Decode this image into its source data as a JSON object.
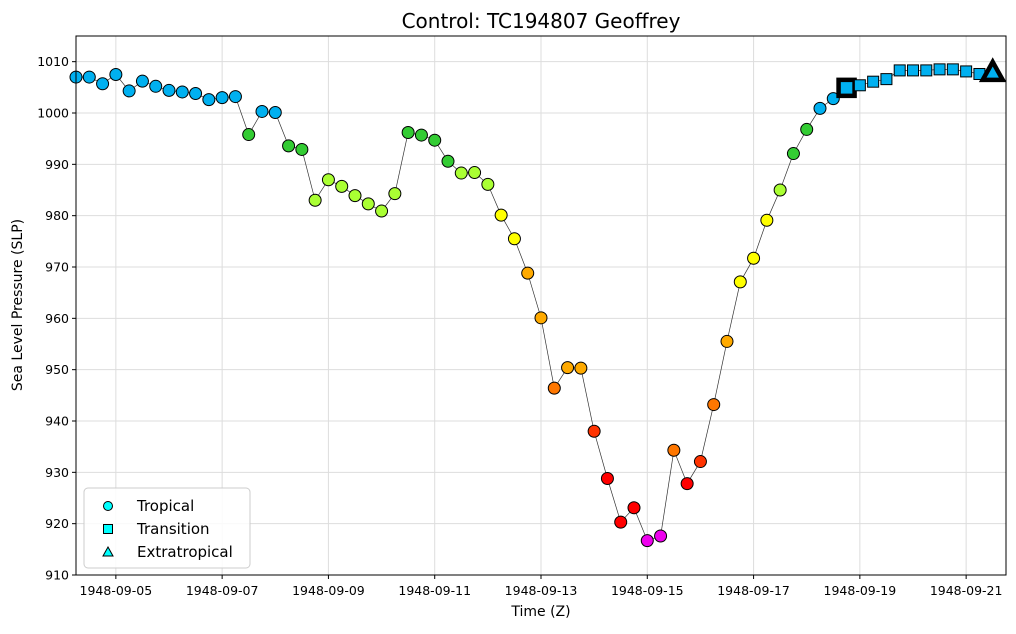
{
  "chart_data": {
    "type": "scatter",
    "title": "Control: TC194807 Geoffrey",
    "xlabel": "Time (Z)",
    "ylabel": "Sea Level Pressure (SLP)",
    "ylim": [
      910,
      1015
    ],
    "xlim": [
      "1948-09-04 06:00",
      "1948-09-21 18:00"
    ],
    "yticks": [
      910,
      920,
      930,
      940,
      950,
      960,
      970,
      980,
      990,
      1000,
      1010
    ],
    "xticks": [
      "1948-09-05",
      "1948-09-07",
      "1948-09-09",
      "1948-09-11",
      "1948-09-13",
      "1948-09-15",
      "1948-09-17",
      "1948-09-19",
      "1948-09-21"
    ],
    "grid": true,
    "legend": {
      "placement": "lower-left",
      "entries": [
        {
          "label": "Tropical",
          "marker": "circle",
          "color": "#00ffff"
        },
        {
          "label": "Transition",
          "marker": "square",
          "color": "#00ffff"
        },
        {
          "label": "Extratropical",
          "marker": "triangle",
          "color": "#00ffff"
        }
      ]
    },
    "colors": {
      "line": "#333333",
      "grid": "#dddddd",
      "TD": "#00b0f0",
      "TS": "#33cc33",
      "TS2": "#aaff33",
      "C1": "#ffff00",
      "C2": "#ffaa00",
      "C3": "#ff7700",
      "C4": "#ff3300",
      "C5": "#ff0000",
      "C6": "#ee00ee"
    },
    "series": [
      {
        "marker": "circle",
        "points": [
          {
            "x": "1948-09-04 06:00",
            "y": 1007.0,
            "cat": "TD"
          },
          {
            "x": "1948-09-04 12:00",
            "y": 1007.0,
            "cat": "TD"
          },
          {
            "x": "1948-09-04 18:00",
            "y": 1005.7,
            "cat": "TD"
          },
          {
            "x": "1948-09-05 00:00",
            "y": 1007.5,
            "cat": "TD"
          },
          {
            "x": "1948-09-05 06:00",
            "y": 1004.3,
            "cat": "TD"
          },
          {
            "x": "1948-09-05 12:00",
            "y": 1006.2,
            "cat": "TD"
          },
          {
            "x": "1948-09-05 18:00",
            "y": 1005.2,
            "cat": "TD"
          },
          {
            "x": "1948-09-06 00:00",
            "y": 1004.4,
            "cat": "TD"
          },
          {
            "x": "1948-09-06 06:00",
            "y": 1004.1,
            "cat": "TD"
          },
          {
            "x": "1948-09-06 12:00",
            "y": 1003.8,
            "cat": "TD"
          },
          {
            "x": "1948-09-06 18:00",
            "y": 1002.6,
            "cat": "TD"
          },
          {
            "x": "1948-09-07 00:00",
            "y": 1003.0,
            "cat": "TD"
          },
          {
            "x": "1948-09-07 06:00",
            "y": 1003.2,
            "cat": "TD"
          },
          {
            "x": "1948-09-07 12:00",
            "y": 995.8,
            "cat": "TS"
          },
          {
            "x": "1948-09-07 18:00",
            "y": 1000.3,
            "cat": "TD"
          },
          {
            "x": "1948-09-08 00:00",
            "y": 1000.1,
            "cat": "TD"
          },
          {
            "x": "1948-09-08 06:00",
            "y": 993.6,
            "cat": "TS"
          },
          {
            "x": "1948-09-08 12:00",
            "y": 992.9,
            "cat": "TS"
          },
          {
            "x": "1948-09-08 18:00",
            "y": 983.0,
            "cat": "TS2"
          },
          {
            "x": "1948-09-09 00:00",
            "y": 987.0,
            "cat": "TS2"
          },
          {
            "x": "1948-09-09 06:00",
            "y": 985.7,
            "cat": "TS2"
          },
          {
            "x": "1948-09-09 12:00",
            "y": 983.9,
            "cat": "TS2"
          },
          {
            "x": "1948-09-09 18:00",
            "y": 982.3,
            "cat": "TS2"
          },
          {
            "x": "1948-09-10 00:00",
            "y": 980.9,
            "cat": "TS2"
          },
          {
            "x": "1948-09-10 06:00",
            "y": 984.3,
            "cat": "TS2"
          },
          {
            "x": "1948-09-10 12:00",
            "y": 996.2,
            "cat": "TS"
          },
          {
            "x": "1948-09-10 18:00",
            "y": 995.7,
            "cat": "TS"
          },
          {
            "x": "1948-09-11 00:00",
            "y": 994.7,
            "cat": "TS"
          },
          {
            "x": "1948-09-11 06:00",
            "y": 990.6,
            "cat": "TS"
          },
          {
            "x": "1948-09-11 12:00",
            "y": 988.3,
            "cat": "TS2"
          },
          {
            "x": "1948-09-11 18:00",
            "y": 988.4,
            "cat": "TS2"
          },
          {
            "x": "1948-09-12 00:00",
            "y": 986.1,
            "cat": "TS2"
          },
          {
            "x": "1948-09-12 06:00",
            "y": 980.1,
            "cat": "C1"
          },
          {
            "x": "1948-09-12 12:00",
            "y": 975.5,
            "cat": "C1"
          },
          {
            "x": "1948-09-12 18:00",
            "y": 968.8,
            "cat": "C2"
          },
          {
            "x": "1948-09-13 00:00",
            "y": 960.1,
            "cat": "C2"
          },
          {
            "x": "1948-09-13 06:00",
            "y": 946.4,
            "cat": "C3"
          },
          {
            "x": "1948-09-13 12:00",
            "y": 950.4,
            "cat": "C2"
          },
          {
            "x": "1948-09-13 18:00",
            "y": 950.3,
            "cat": "C2"
          },
          {
            "x": "1948-09-14 00:00",
            "y": 938.0,
            "cat": "C4"
          },
          {
            "x": "1948-09-14 06:00",
            "y": 928.8,
            "cat": "C5"
          },
          {
            "x": "1948-09-14 12:00",
            "y": 920.3,
            "cat": "C5"
          },
          {
            "x": "1948-09-14 18:00",
            "y": 923.1,
            "cat": "C5"
          },
          {
            "x": "1948-09-15 00:00",
            "y": 916.7,
            "cat": "C6"
          },
          {
            "x": "1948-09-15 06:00",
            "y": 917.6,
            "cat": "C6"
          },
          {
            "x": "1948-09-15 12:00",
            "y": 934.3,
            "cat": "C3"
          },
          {
            "x": "1948-09-15 18:00",
            "y": 927.8,
            "cat": "C5"
          },
          {
            "x": "1948-09-16 00:00",
            "y": 932.1,
            "cat": "C4"
          },
          {
            "x": "1948-09-16 06:00",
            "y": 943.2,
            "cat": "C3"
          },
          {
            "x": "1948-09-16 12:00",
            "y": 955.5,
            "cat": "C2"
          },
          {
            "x": "1948-09-16 18:00",
            "y": 967.1,
            "cat": "C1"
          },
          {
            "x": "1948-09-17 00:00",
            "y": 971.7,
            "cat": "C1"
          },
          {
            "x": "1948-09-17 06:00",
            "y": 979.1,
            "cat": "C1"
          },
          {
            "x": "1948-09-17 12:00",
            "y": 985.0,
            "cat": "TS2"
          },
          {
            "x": "1948-09-17 18:00",
            "y": 992.1,
            "cat": "TS"
          },
          {
            "x": "1948-09-18 00:00",
            "y": 996.8,
            "cat": "TS"
          },
          {
            "x": "1948-09-18 06:00",
            "y": 1000.9,
            "cat": "TD"
          },
          {
            "x": "1948-09-18 12:00",
            "y": 1002.8,
            "cat": "TD"
          }
        ]
      },
      {
        "marker": "square",
        "points": [
          {
            "x": "1948-09-18 18:00",
            "y": 1004.9,
            "cat": "TD",
            "emphasis": true
          },
          {
            "x": "1948-09-19 00:00",
            "y": 1005.4,
            "cat": "TD"
          },
          {
            "x": "1948-09-19 06:00",
            "y": 1006.1,
            "cat": "TD"
          },
          {
            "x": "1948-09-19 12:00",
            "y": 1006.6,
            "cat": "TD"
          },
          {
            "x": "1948-09-19 18:00",
            "y": 1008.3,
            "cat": "TD"
          },
          {
            "x": "1948-09-20 00:00",
            "y": 1008.3,
            "cat": "TD"
          },
          {
            "x": "1948-09-20 06:00",
            "y": 1008.3,
            "cat": "TD"
          },
          {
            "x": "1948-09-20 12:00",
            "y": 1008.5,
            "cat": "TD"
          },
          {
            "x": "1948-09-20 18:00",
            "y": 1008.5,
            "cat": "TD"
          },
          {
            "x": "1948-09-21 00:00",
            "y": 1008.1,
            "cat": "TD"
          },
          {
            "x": "1948-09-21 06:00",
            "y": 1007.6,
            "cat": "TD"
          }
        ]
      },
      {
        "marker": "triangle",
        "points": [
          {
            "x": "1948-09-21 12:00",
            "y": 1008.0,
            "cat": "TD",
            "emphasis": true
          }
        ]
      }
    ]
  }
}
